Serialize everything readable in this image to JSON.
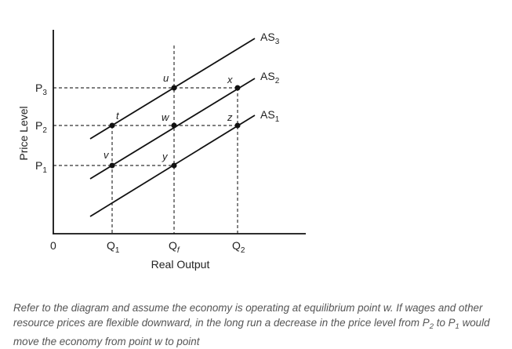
{
  "axes": {
    "y_label": "Price Level",
    "x_label": "Real Output",
    "origin": "0"
  },
  "price_levels": [
    {
      "text": "P",
      "sub": "3"
    },
    {
      "text": "P",
      "sub": "2"
    },
    {
      "text": "P",
      "sub": "1"
    }
  ],
  "quantities": [
    {
      "text": "Q",
      "sub": "1"
    },
    {
      "text": "Q",
      "sub": "f"
    },
    {
      "text": "Q",
      "sub": "2"
    }
  ],
  "curves": [
    {
      "text": "AS",
      "sub": "3"
    },
    {
      "text": "AS",
      "sub": "2"
    },
    {
      "text": "AS",
      "sub": "1"
    }
  ],
  "points": [
    "u",
    "x",
    "t",
    "w",
    "z",
    "v",
    "y"
  ],
  "caption": [
    {
      "text": "Refer to the diagram and assume the economy is operating at equilibrium point w. If wages and other resource prices are flexible downward, in the long run a decrease in the price level from P"
    },
    {
      "sub": "2"
    },
    {
      "text": " to P"
    },
    {
      "sub": "1"
    },
    {
      "text": " would move the economy from point w to point"
    }
  ]
}
